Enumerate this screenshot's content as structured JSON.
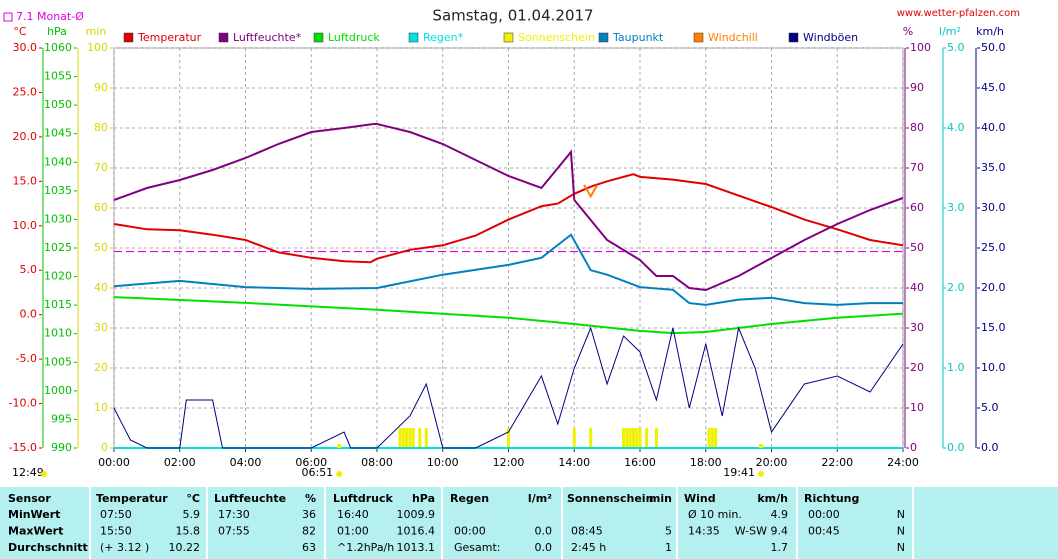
{
  "chart_data": {
    "type": "line",
    "title": "Samstag, 01.04.2017",
    "source": "www.wetter-pfalzen.com",
    "monthly_avg": {
      "label": "7.1 Monat-Ø",
      "value": 7.1,
      "color": "#e000e0"
    },
    "grid": true,
    "xlim": [
      0,
      24
    ],
    "xticks": [
      {
        "value": 0,
        "label": "00:00"
      },
      {
        "value": 2,
        "label": "02:00"
      },
      {
        "value": 4,
        "label": "04:00"
      },
      {
        "value": 6,
        "label": "06:00"
      },
      {
        "value": 8,
        "label": "08:00"
      },
      {
        "value": 10,
        "label": "10:00"
      },
      {
        "value": 12,
        "label": "12:00"
      },
      {
        "value": 14,
        "label": "14:00"
      },
      {
        "value": 16,
        "label": "16:00"
      },
      {
        "value": 18,
        "label": "18:00"
      },
      {
        "value": 20,
        "label": "20:00"
      },
      {
        "value": 22,
        "label": "22:00"
      },
      {
        "value": 24,
        "label": "24:00"
      }
    ],
    "axes": {
      "temp": {
        "label": "°C",
        "color": "#e00000",
        "lim": [
          -15,
          30
        ],
        "ticks": [
          {
            "value": 30,
            "label": "30.0"
          },
          {
            "value": 25,
            "label": "25.0"
          },
          {
            "value": 20,
            "label": "20.0"
          },
          {
            "value": 15,
            "label": "15.0"
          },
          {
            "value": 10,
            "label": "10.0"
          },
          {
            "value": 5,
            "label": "5.0"
          },
          {
            "value": 0,
            "label": "0.0"
          },
          {
            "value": -5,
            "label": "-5.0"
          },
          {
            "value": -10,
            "label": "-10.0"
          },
          {
            "value": -15,
            "label": "-15.0"
          }
        ]
      },
      "press": {
        "label": "hPa",
        "color": "#00c000",
        "lim": [
          990,
          1060
        ],
        "ticks": [
          1060,
          1055,
          1050,
          1045,
          1040,
          1035,
          1030,
          1025,
          1020,
          1015,
          1010,
          1005,
          1000,
          995,
          990
        ]
      },
      "sun": {
        "label": "min",
        "color": "#d8d800",
        "lim": [
          0,
          100
        ],
        "ticks": [
          100,
          90,
          80,
          70,
          60,
          50,
          40,
          30,
          20,
          10,
          0
        ]
      },
      "hum": {
        "label": "%",
        "color": "#800080",
        "lim": [
          0,
          100
        ],
        "ticks": [
          100,
          90,
          80,
          70,
          60,
          50,
          40,
          30,
          20,
          10,
          0
        ]
      },
      "rain": {
        "label": "l/m²",
        "color": "#00c8c8",
        "lim": [
          0,
          5
        ],
        "ticks": [
          {
            "value": 5,
            "label": "5.0"
          },
          {
            "value": 4,
            "label": "4.0"
          },
          {
            "value": 3,
            "label": "3.0"
          },
          {
            "value": 2,
            "label": "2.0"
          },
          {
            "value": 1,
            "label": "1.0"
          },
          {
            "value": 0,
            "label": "0.0"
          }
        ]
      },
      "wind": {
        "label": "km/h",
        "color": "#000080",
        "lim": [
          0,
          50
        ],
        "ticks": [
          {
            "value": 50,
            "label": "50.0"
          },
          {
            "value": 45,
            "label": "45.0"
          },
          {
            "value": 40,
            "label": "40.0"
          },
          {
            "value": 35,
            "label": "35.0"
          },
          {
            "value": 30,
            "label": "30.0"
          },
          {
            "value": 25,
            "label": "25.0"
          },
          {
            "value": 20,
            "label": "20.0"
          },
          {
            "value": 15,
            "label": "15.0"
          },
          {
            "value": 10,
            "label": "10.0"
          },
          {
            "value": 5,
            "label": "5.0"
          },
          {
            "value": 0,
            "label": "0.0"
          }
        ]
      }
    },
    "series": [
      {
        "name": "Temperatur",
        "color": "#e00000",
        "axis": "temp",
        "kind": "line",
        "x": [
          0,
          1,
          2,
          3,
          4,
          5,
          6,
          7,
          7.8,
          8,
          9,
          10,
          11,
          12,
          13,
          13.5,
          14,
          14.5,
          15,
          15.8,
          16,
          17,
          18,
          19,
          20,
          21,
          22,
          23,
          24
        ],
        "values": [
          10.2,
          9.6,
          9.5,
          9.0,
          8.4,
          7.0,
          6.4,
          6.0,
          5.9,
          6.3,
          7.3,
          7.8,
          8.9,
          10.7,
          12.2,
          12.5,
          13.6,
          14.4,
          15.0,
          15.8,
          15.5,
          15.2,
          14.7,
          13.4,
          12.1,
          10.7,
          9.6,
          8.4,
          7.8
        ]
      },
      {
        "name": "Luftfeuchte*",
        "color": "#800080",
        "axis": "hum",
        "kind": "line",
        "x": [
          0,
          1,
          2,
          3,
          4,
          5,
          6,
          7,
          7.9,
          8,
          9,
          10,
          11,
          12,
          13,
          13.9,
          14,
          15,
          16,
          16.5,
          17,
          17.5,
          18,
          19,
          20,
          21,
          22,
          23,
          24
        ],
        "values": [
          62,
          65,
          67,
          69.5,
          72.5,
          76,
          79,
          80,
          81,
          81,
          79,
          76,
          72,
          68,
          65,
          74,
          62,
          52,
          47,
          43,
          43,
          40,
          39.5,
          43,
          47.5,
          52,
          56,
          59.5,
          62.5
        ]
      },
      {
        "name": "Luftdruck",
        "color": "#00e000",
        "axis": "press",
        "kind": "line",
        "x": [
          0,
          4,
          8,
          12,
          14,
          16,
          17,
          18,
          20,
          22,
          24
        ],
        "values": [
          1016.4,
          1015.4,
          1014.2,
          1012.8,
          1011.7,
          1010.5,
          1010.1,
          1010.3,
          1011.7,
          1012.8,
          1013.5
        ]
      },
      {
        "name": "Regen*",
        "color": "#00e0e0",
        "axis": "rain",
        "kind": "line",
        "x": [
          0,
          24
        ],
        "values": [
          0,
          0
        ]
      },
      {
        "name": "Sonnenschein",
        "color": "#f0f000",
        "axis": "sun",
        "kind": "bar",
        "x": [
          8.7,
          8.8,
          8.9,
          9.0,
          9.1,
          9.3,
          9.5,
          12.0,
          14.0,
          14.5,
          15.5,
          15.6,
          15.7,
          15.8,
          15.9,
          16.0,
          16.2,
          16.5,
          18.1,
          18.2,
          18.3
        ],
        "values": [
          5,
          5,
          5,
          5,
          5,
          5,
          5,
          5,
          5,
          5,
          5,
          5,
          5,
          5,
          5,
          5,
          5,
          5,
          5,
          5,
          5
        ]
      },
      {
        "name": "Taupunkt",
        "color": "#0080c0",
        "axis": "temp",
        "kind": "line",
        "x": [
          0,
          2,
          4,
          6,
          8,
          10,
          12,
          13,
          13.9,
          14.5,
          15,
          16,
          17,
          17.5,
          18,
          19,
          20,
          21,
          22,
          23,
          24
        ],
        "values": [
          3.2,
          3.8,
          3.1,
          2.9,
          3.0,
          4.5,
          5.6,
          6.4,
          9.0,
          5.0,
          4.5,
          3.1,
          2.8,
          1.3,
          1.1,
          1.7,
          1.9,
          1.3,
          1.1,
          1.3,
          1.3
        ]
      },
      {
        "name": "Windchill",
        "color": "#ff8000",
        "axis": "temp",
        "kind": "line",
        "x": [
          14.3,
          14.5,
          14.7
        ],
        "values": [
          14.6,
          13.3,
          14.6
        ]
      },
      {
        "name": "Windböen",
        "color": "#000080",
        "axis": "wind",
        "kind": "line",
        "x": [
          0,
          0.5,
          1,
          2,
          2.2,
          3,
          3.3,
          4,
          5,
          6,
          7,
          7.2,
          8,
          9,
          9.5,
          10,
          11,
          12,
          13,
          13.5,
          14,
          14.5,
          15,
          15.5,
          16,
          16.5,
          17,
          17.5,
          18,
          18.5,
          19,
          19.5,
          20,
          21,
          22,
          23,
          24
        ],
        "values": [
          5,
          1,
          0,
          0,
          6,
          6,
          0,
          0,
          0,
          0,
          2,
          0,
          0,
          4,
          8,
          0,
          0,
          2,
          9,
          3,
          10,
          15,
          8,
          14,
          12,
          6,
          15,
          5,
          13,
          4,
          15,
          10,
          2,
          8,
          9,
          7,
          13
        ]
      }
    ],
    "sun_info": {
      "day_length": "12:49",
      "sunrise": {
        "label": "06:51",
        "x": 6.85
      },
      "sunset": {
        "label": "19:41",
        "x": 19.68
      }
    }
  },
  "table": {
    "columns": [
      {
        "title": "Sensor"
      },
      {
        "title": "Temperatur",
        "unit": "°C"
      },
      {
        "title": "Luftfeuchte",
        "unit": "%"
      },
      {
        "title": "Luftdruck",
        "unit": "hPa"
      },
      {
        "title": "Regen",
        "unit": "l/m²"
      },
      {
        "title": "Sonnenschein",
        "unit": "min"
      },
      {
        "title": "Wind",
        "unit": "km/h"
      },
      {
        "title": "Richtung"
      }
    ],
    "rows": [
      {
        "label": "MinWert",
        "cells": [
          {
            "time": "07:50",
            "value": "5.9"
          },
          {
            "time": "17:30",
            "value": "36"
          },
          {
            "time": "16:40",
            "value": "1009.9"
          },
          null,
          null,
          {
            "time": "Ø 10 min.",
            "value": "4.9"
          },
          {
            "time": "00:00",
            "value": "N"
          }
        ]
      },
      {
        "label": "MaxWert",
        "cells": [
          {
            "time": "15:50",
            "value": "15.8"
          },
          {
            "time": "07:55",
            "value": "82"
          },
          {
            "time": "01:00",
            "value": "1016.4"
          },
          {
            "time": "00:00",
            "value": "0.0"
          },
          {
            "time": "08:45",
            "value": "5"
          },
          {
            "time": "14:35",
            "value": "W-SW 9.4"
          },
          {
            "time": "00:45",
            "value": "N"
          }
        ]
      },
      {
        "label": "Durchschnitt",
        "cells": [
          {
            "time": "(+ 3.12 )",
            "value": "10.22"
          },
          {
            "value": "63"
          },
          {
            "time": "^1.2hPa/h",
            "value": "1013.1"
          },
          {
            "time": "Gesamt:",
            "value": "0.0"
          },
          {
            "time": "2:45 h",
            "value": "1"
          },
          {
            "value": "1.7"
          },
          {
            "value": "N"
          }
        ]
      }
    ]
  }
}
